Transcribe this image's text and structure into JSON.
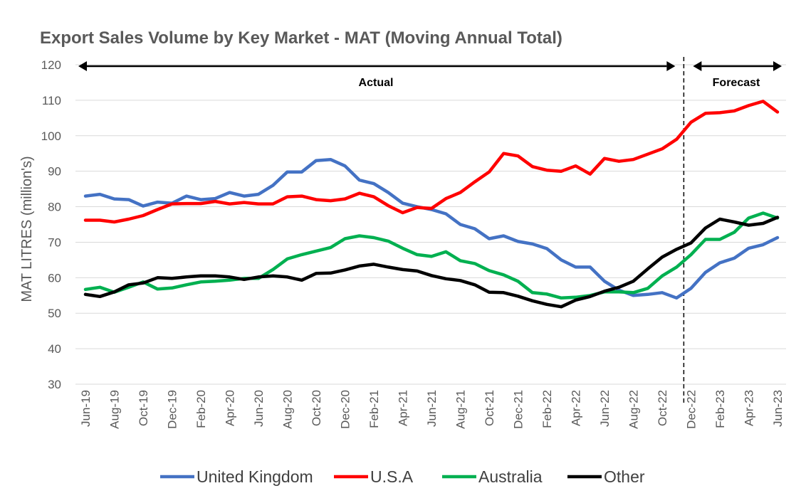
{
  "chart_data": {
    "type": "line",
    "title": "Export Sales Volume by Key Market - MAT (Moving Annual Total)",
    "ylabel": "MAT LITRES (million's)",
    "xlabel": "",
    "ylim": [
      30,
      120
    ],
    "yticks": [
      30,
      40,
      50,
      60,
      70,
      80,
      90,
      100,
      110,
      120
    ],
    "grid": true,
    "legend_position": "bottom",
    "categories": [
      "Jun-19",
      "Jul-19",
      "Aug-19",
      "Sep-19",
      "Oct-19",
      "Nov-19",
      "Dec-19",
      "Jan-20",
      "Feb-20",
      "Mar-20",
      "Apr-20",
      "May-20",
      "Jun-20",
      "Jul-20",
      "Aug-20",
      "Sep-20",
      "Oct-20",
      "Nov-20",
      "Dec-20",
      "Jan-21",
      "Feb-21",
      "Mar-21",
      "Apr-21",
      "May-21",
      "Jun-21",
      "Jul-21",
      "Aug-21",
      "Sep-21",
      "Oct-21",
      "Nov-21",
      "Dec-21",
      "Jan-22",
      "Feb-22",
      "Mar-22",
      "Apr-22",
      "May-22",
      "Jun-22",
      "Jul-22",
      "Aug-22",
      "Sep-22",
      "Oct-22",
      "Nov-22",
      "Dec-22",
      "Jan-23",
      "Feb-23",
      "Mar-23",
      "Apr-23",
      "May-23",
      "Jun-23"
    ],
    "xtick_labels": [
      "Jun-19",
      "Aug-19",
      "Oct-19",
      "Dec-19",
      "Feb-20",
      "Apr-20",
      "Jun-20",
      "Aug-20",
      "Oct-20",
      "Dec-20",
      "Feb-21",
      "Apr-21",
      "Jun-21",
      "Aug-21",
      "Oct-21",
      "Dec-21",
      "Feb-22",
      "Apr-22",
      "Jun-22",
      "Aug-22",
      "Oct-22",
      "Dec-22",
      "Feb-23",
      "Apr-23",
      "Jun-23"
    ],
    "series": [
      {
        "name": "United Kingdom",
        "color": "#4472c4",
        "values": [
          83,
          83.5,
          82.2,
          82,
          80.2,
          81.3,
          81,
          83,
          82,
          82.3,
          84,
          83,
          83.5,
          86,
          89.8,
          89.8,
          93,
          93.3,
          91.5,
          87.5,
          86.5,
          84,
          81,
          80,
          79.2,
          78,
          75,
          73.8,
          71,
          71.8,
          70.2,
          69.5,
          68.2,
          65,
          63,
          63,
          59,
          56.5,
          55,
          55.3,
          55.8,
          54.3,
          57,
          61.5,
          64.2,
          65.5,
          68.3,
          69.3,
          71.3
        ]
      },
      {
        "name": "U.S.A",
        "color": "#ff0000",
        "values": [
          76.2,
          76.2,
          75.7,
          76.5,
          77.5,
          79.2,
          80.8,
          80.9,
          80.9,
          81.5,
          80.8,
          81.2,
          80.8,
          80.8,
          82.8,
          83,
          82,
          81.7,
          82.2,
          83.8,
          82.8,
          80.3,
          78.3,
          79.8,
          79.5,
          82.3,
          84,
          87,
          89.8,
          95,
          94.3,
          91.3,
          90.3,
          90,
          91.5,
          89.2,
          93.6,
          92.8,
          93.3,
          94.8,
          96.3,
          99,
          103.8,
          106.3,
          106.5,
          107,
          108.5,
          109.7,
          106.7
        ]
      },
      {
        "name": "Australia",
        "color": "#00b050",
        "values": [
          56.7,
          57.3,
          55.9,
          57.3,
          58.8,
          56.8,
          57.1,
          58,
          58.8,
          59,
          59.3,
          59.8,
          59.8,
          62.3,
          65.3,
          66.5,
          67.5,
          68.5,
          71,
          71.8,
          71.3,
          70.3,
          68.3,
          66.5,
          66,
          67.3,
          64.8,
          64,
          62,
          60.8,
          59,
          55.8,
          55.4,
          54.3,
          54.5,
          55,
          56,
          56,
          55.8,
          57,
          60.5,
          63,
          66.5,
          70.8,
          70.8,
          72.8,
          76.8,
          78.2,
          76.8
        ]
      },
      {
        "name": "Other",
        "color": "#000000",
        "values": [
          55.3,
          54.7,
          56,
          58,
          58.5,
          60,
          59.8,
          60.2,
          60.5,
          60.5,
          60.2,
          59.5,
          60.2,
          60.5,
          60.2,
          59.3,
          61.2,
          61.3,
          62.2,
          63.3,
          63.8,
          63,
          62.3,
          61.9,
          60.6,
          59.7,
          59.2,
          58,
          55.9,
          55.8,
          54.8,
          53.5,
          52.5,
          51.8,
          53.7,
          54.7,
          56.2,
          57.3,
          59,
          62.5,
          65.8,
          68,
          69.8,
          74,
          76.5,
          75.7,
          74.8,
          75.3,
          77
        ]
      }
    ],
    "annotations": {
      "forecast_divider_between": [
        "Nov-22",
        "Dec-22"
      ],
      "actual_label": "Actual",
      "forecast_label": "Forecast"
    }
  }
}
